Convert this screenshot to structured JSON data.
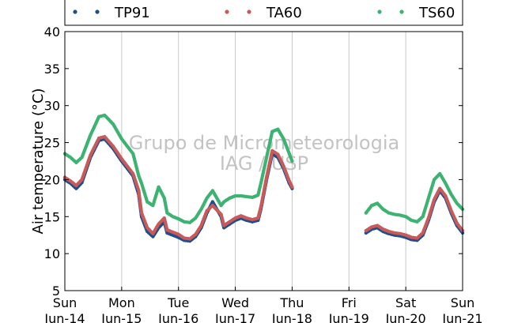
{
  "chart_data": {
    "type": "scatter",
    "ylabel": "Air temperature (°C)",
    "ylim": [
      5,
      40
    ],
    "yticks": [
      5,
      10,
      15,
      20,
      25,
      30,
      35,
      40
    ],
    "xlim": [
      0,
      7
    ],
    "xticks": [
      {
        "day": "Sun",
        "date": "Jun-14",
        "x": 0
      },
      {
        "day": "Mon",
        "date": "Jun-15",
        "x": 1
      },
      {
        "day": "Tue",
        "date": "Jun-16",
        "x": 2
      },
      {
        "day": "Wed",
        "date": "Jun-17",
        "x": 3
      },
      {
        "day": "Thu",
        "date": "Jun-18",
        "x": 4
      },
      {
        "day": "Fri",
        "date": "Jun-19",
        "x": 5
      },
      {
        "day": "Sat",
        "date": "Jun-20",
        "x": 6
      },
      {
        "day": "Sun",
        "date": "Jun-21",
        "x": 7
      }
    ],
    "grid": "vertical",
    "legend": "top",
    "watermark": [
      "Grupo de Micrometeorologia",
      "IAG / USP"
    ],
    "series": [
      {
        "name": "TP91",
        "color": "#1f4e8c",
        "x": [
          0.0,
          0.1,
          0.2,
          0.3,
          0.45,
          0.6,
          0.7,
          0.85,
          1.0,
          1.1,
          1.2,
          1.3,
          1.35,
          1.45,
          1.55,
          1.65,
          1.75,
          1.8,
          1.9,
          2.0,
          2.1,
          2.2,
          2.3,
          2.4,
          2.5,
          2.6,
          2.75,
          2.8,
          2.9,
          3.0,
          3.1,
          3.2,
          3.3,
          3.4,
          3.45,
          3.55,
          3.65,
          3.75,
          3.85,
          3.95,
          4.0,
          5.3,
          5.4,
          5.5,
          5.6,
          5.7,
          5.8,
          5.9,
          6.0,
          6.1,
          6.2,
          6.3,
          6.4,
          6.5,
          6.6,
          6.7,
          6.8,
          6.9,
          7.0
        ],
        "y": [
          20.0,
          19.5,
          18.8,
          19.6,
          23.0,
          25.3,
          25.5,
          24.2,
          22.5,
          21.5,
          20.5,
          18.0,
          15.0,
          13.0,
          12.3,
          13.5,
          14.3,
          12.8,
          12.5,
          12.2,
          11.8,
          11.7,
          12.3,
          13.5,
          15.5,
          17.0,
          15.0,
          13.5,
          14.0,
          14.5,
          14.8,
          14.5,
          14.3,
          14.5,
          16.0,
          20.0,
          23.5,
          23.0,
          21.5,
          19.5,
          18.8,
          12.8,
          13.3,
          13.5,
          13.0,
          12.7,
          12.5,
          12.4,
          12.2,
          11.9,
          11.8,
          12.5,
          14.5,
          17.0,
          18.5,
          17.5,
          15.5,
          13.8,
          12.8
        ]
      },
      {
        "name": "TA60",
        "color": "#c85a5a",
        "x": [
          0.0,
          0.1,
          0.2,
          0.3,
          0.45,
          0.6,
          0.7,
          0.85,
          1.0,
          1.1,
          1.2,
          1.3,
          1.35,
          1.45,
          1.55,
          1.65,
          1.75,
          1.8,
          1.9,
          2.0,
          2.1,
          2.2,
          2.3,
          2.4,
          2.5,
          2.6,
          2.75,
          2.8,
          2.9,
          3.0,
          3.1,
          3.2,
          3.3,
          3.4,
          3.45,
          3.55,
          3.65,
          3.75,
          3.85,
          3.95,
          4.0,
          5.3,
          5.4,
          5.5,
          5.6,
          5.7,
          5.8,
          5.9,
          6.0,
          6.1,
          6.2,
          6.3,
          6.4,
          6.5,
          6.6,
          6.7,
          6.8,
          6.9,
          7.0
        ],
        "y": [
          20.3,
          19.8,
          19.2,
          20.0,
          23.3,
          25.6,
          25.8,
          24.5,
          22.8,
          21.8,
          20.8,
          18.5,
          15.5,
          13.5,
          12.7,
          14.0,
          14.8,
          13.2,
          12.9,
          12.6,
          12.1,
          12.0,
          12.6,
          13.8,
          15.8,
          16.5,
          15.3,
          13.8,
          14.3,
          14.8,
          15.1,
          14.8,
          14.6,
          14.8,
          16.3,
          20.3,
          23.9,
          23.4,
          21.8,
          19.8,
          19.0,
          13.1,
          13.6,
          13.8,
          13.3,
          13.0,
          12.8,
          12.7,
          12.5,
          12.2,
          12.1,
          12.8,
          14.8,
          17.3,
          18.8,
          17.8,
          15.8,
          14.1,
          13.1
        ]
      },
      {
        "name": "TS60",
        "color": "#3cb371",
        "x": [
          0.0,
          0.1,
          0.2,
          0.3,
          0.45,
          0.6,
          0.7,
          0.85,
          1.0,
          1.1,
          1.2,
          1.3,
          1.35,
          1.45,
          1.55,
          1.65,
          1.75,
          1.8,
          1.9,
          2.0,
          2.1,
          2.2,
          2.3,
          2.4,
          2.5,
          2.6,
          2.75,
          2.8,
          2.9,
          3.0,
          3.1,
          3.2,
          3.3,
          3.4,
          3.45,
          3.55,
          3.65,
          3.75,
          3.85,
          3.95,
          4.0,
          5.3,
          5.4,
          5.5,
          5.6,
          5.7,
          5.8,
          5.9,
          6.0,
          6.1,
          6.2,
          6.3,
          6.4,
          6.5,
          6.6,
          6.7,
          6.8,
          6.9,
          7.0
        ],
        "y": [
          23.5,
          23.0,
          22.3,
          23.0,
          26.0,
          28.5,
          28.7,
          27.5,
          25.5,
          24.5,
          23.5,
          20.5,
          19.5,
          17.0,
          16.5,
          19.0,
          17.5,
          15.5,
          15.0,
          14.7,
          14.3,
          14.2,
          14.8,
          16.0,
          17.5,
          18.5,
          16.5,
          17.0,
          17.5,
          17.8,
          17.8,
          17.7,
          17.6,
          17.9,
          19.5,
          23.0,
          26.5,
          26.8,
          25.5,
          23.5,
          22.5,
          15.5,
          16.5,
          16.8,
          16.0,
          15.5,
          15.3,
          15.2,
          15.0,
          14.5,
          14.3,
          15.0,
          17.5,
          20.0,
          20.8,
          19.5,
          18.0,
          16.8,
          16.0
        ]
      }
    ]
  }
}
